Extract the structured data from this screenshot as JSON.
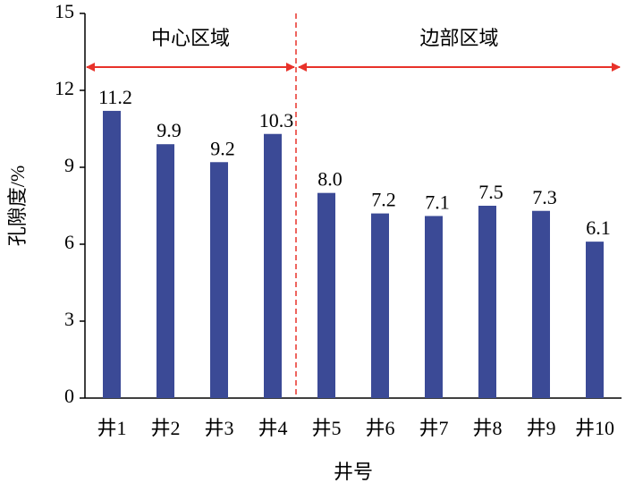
{
  "chart_data": {
    "type": "bar",
    "x_label": "井号",
    "y_label": "孔隙度/%",
    "categories": [
      "井1",
      "井2",
      "井3",
      "井4",
      "井5",
      "井6",
      "井7",
      "井8",
      "井9",
      "井10"
    ],
    "values": [
      11.2,
      9.9,
      9.2,
      10.3,
      8.0,
      7.2,
      7.1,
      7.5,
      7.3,
      6.1
    ],
    "value_labels": [
      "11.2",
      "9.9",
      "9.2",
      "10.3",
      "8.0",
      "7.2",
      "7.1",
      "7.5",
      "7.3",
      "6.1"
    ],
    "color": "#3b4a96",
    "ylim": [
      0,
      15
    ],
    "yticks": [
      0,
      3,
      6,
      9,
      12,
      15
    ],
    "annotations": [
      "中心区域",
      "边部区域"
    ],
    "annotation_color": "#e8322a"
  }
}
